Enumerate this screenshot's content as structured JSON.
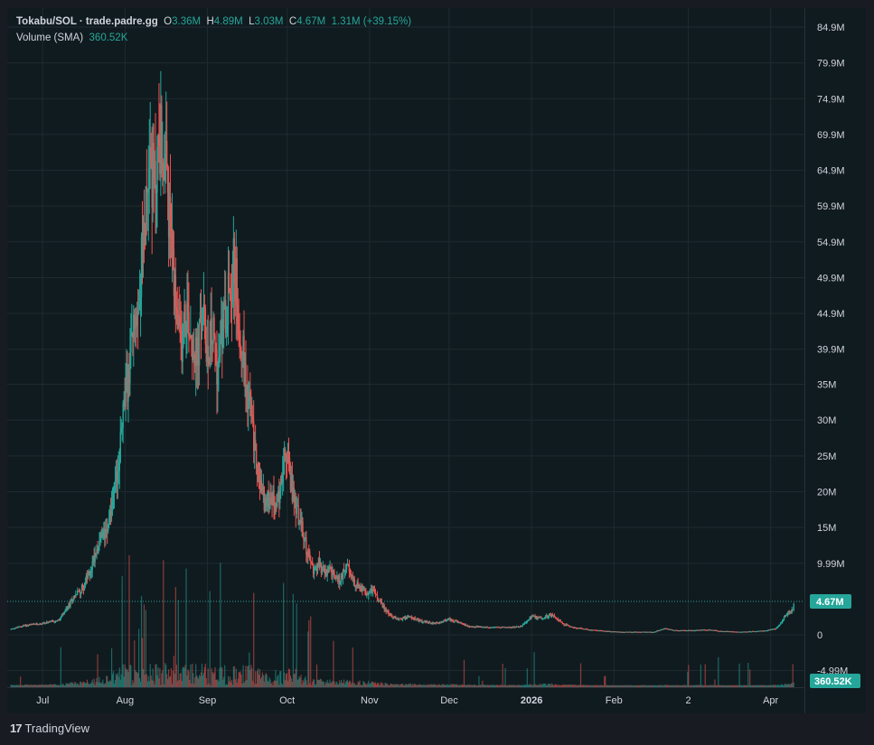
{
  "header": {
    "symbol": "Tokabu/SOL · trade.padre.gg",
    "o_label": "O",
    "o_value": "3.36M",
    "h_label": "H",
    "h_value": "4.89M",
    "l_label": "L",
    "l_value": "3.03M",
    "c_label": "C",
    "c_value": "4.67M",
    "change": "1.31M (+39.15%)",
    "volume_label": "Volume (SMA)",
    "volume_value": "360.52K"
  },
  "footer": {
    "brand": "TradingView",
    "logo": "17"
  },
  "colors": {
    "up": "#26a69a",
    "down": "#ef5350",
    "background": "#101b1f",
    "grid": "#1f2a30",
    "text": "#d1d4dc",
    "badge": "#26a69a"
  },
  "chart_data": {
    "type": "candlestick",
    "title": "Tokabu/SOL · trade.padre.gg",
    "y_ticks": [
      "84.9M",
      "79.9M",
      "74.9M",
      "69.9M",
      "64.9M",
      "59.9M",
      "54.9M",
      "49.9M",
      "44.9M",
      "39.9M",
      "35M",
      "30M",
      "25M",
      "20M",
      "15M",
      "9.99M",
      "0",
      "-4.99M"
    ],
    "y_tick_values": [
      84.9,
      79.9,
      74.9,
      69.9,
      64.9,
      59.9,
      54.9,
      49.9,
      44.9,
      39.9,
      35,
      30,
      25,
      20,
      15,
      9.99,
      0,
      -4.99
    ],
    "ylim": [
      -4.99,
      84.9
    ],
    "y_unit": "M",
    "x_ticks": [
      "Jul",
      "Aug",
      "Sep",
      "Oct",
      "Nov",
      "Dec",
      "2026",
      "Feb",
      "2",
      "Apr"
    ],
    "x_tick_bold": [
      false,
      false,
      false,
      false,
      false,
      false,
      true,
      false,
      false,
      false
    ],
    "xlim_days": [
      0,
      297
    ],
    "x_tick_days": [
      12,
      43,
      74,
      104,
      135,
      165,
      196,
      227,
      255,
      286
    ],
    "price_badge": "4.67M",
    "last_price": 4.67,
    "volume_badge": "360.52K",
    "price_path": [
      [
        0,
        0.8
      ],
      [
        5,
        1.3
      ],
      [
        10,
        1.5
      ],
      [
        15,
        1.8
      ],
      [
        18,
        2.0
      ],
      [
        21,
        3.5
      ],
      [
        24,
        5.5
      ],
      [
        27,
        6.5
      ],
      [
        30,
        9
      ],
      [
        32,
        12
      ],
      [
        35,
        14
      ],
      [
        38,
        18
      ],
      [
        40,
        22
      ],
      [
        42,
        30
      ],
      [
        44,
        35
      ],
      [
        46,
        42
      ],
      [
        48,
        48
      ],
      [
        50,
        55
      ],
      [
        52,
        68
      ],
      [
        54,
        62
      ],
      [
        56,
        70
      ],
      [
        58,
        66
      ],
      [
        60,
        56
      ],
      [
        62,
        45
      ],
      [
        64,
        40
      ],
      [
        66,
        46
      ],
      [
        68,
        42
      ],
      [
        70,
        38
      ],
      [
        72,
        45
      ],
      [
        74,
        40
      ],
      [
        76,
        42
      ],
      [
        78,
        37
      ],
      [
        80,
        44
      ],
      [
        82,
        48
      ],
      [
        84,
        52
      ],
      [
        86,
        44
      ],
      [
        88,
        37
      ],
      [
        90,
        32
      ],
      [
        92,
        25
      ],
      [
        94,
        21
      ],
      [
        96,
        18
      ],
      [
        98,
        20
      ],
      [
        100,
        17
      ],
      [
        102,
        23
      ],
      [
        104,
        25
      ],
      [
        106,
        20
      ],
      [
        108,
        17
      ],
      [
        110,
        14
      ],
      [
        112,
        11
      ],
      [
        114,
        9
      ],
      [
        116,
        10
      ],
      [
        118,
        8.5
      ],
      [
        120,
        9
      ],
      [
        122,
        8
      ],
      [
        124,
        7.5
      ],
      [
        126,
        10
      ],
      [
        128,
        8
      ],
      [
        130,
        7
      ],
      [
        132,
        6.5
      ],
      [
        134,
        5.5
      ],
      [
        136,
        6.5
      ],
      [
        138,
        5
      ],
      [
        140,
        4
      ],
      [
        143,
        2.6
      ],
      [
        146,
        2.2
      ],
      [
        150,
        2.5
      ],
      [
        155,
        1.8
      ],
      [
        160,
        1.6
      ],
      [
        165,
        2.2
      ],
      [
        168,
        1.8
      ],
      [
        172,
        1.2
      ],
      [
        176,
        1.1
      ],
      [
        180,
        1.0
      ],
      [
        184,
        1.1
      ],
      [
        188,
        1.0
      ],
      [
        192,
        1.2
      ],
      [
        196,
        2.5
      ],
      [
        200,
        2.4
      ],
      [
        204,
        2.8
      ],
      [
        208,
        1.5
      ],
      [
        212,
        1.0
      ],
      [
        218,
        0.7
      ],
      [
        224,
        0.5
      ],
      [
        230,
        0.4
      ],
      [
        236,
        0.4
      ],
      [
        242,
        0.4
      ],
      [
        246,
        0.9
      ],
      [
        250,
        0.6
      ],
      [
        256,
        0.6
      ],
      [
        262,
        0.7
      ],
      [
        268,
        0.5
      ],
      [
        274,
        0.4
      ],
      [
        280,
        0.5
      ],
      [
        284,
        0.6
      ],
      [
        288,
        0.9
      ],
      [
        290,
        1.8
      ],
      [
        292,
        3.0
      ],
      [
        294,
        3.36
      ],
      [
        295,
        4.67
      ]
    ]
  }
}
